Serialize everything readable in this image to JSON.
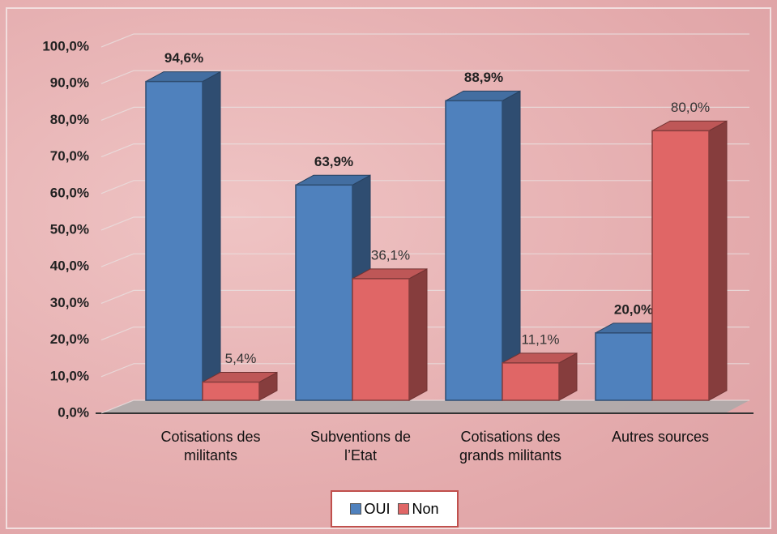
{
  "chart_data": {
    "type": "bar3d",
    "categories": [
      "Cotisations des militants",
      "Subventions de l’Etat",
      "Cotisations des grands militants",
      "Autres sources"
    ],
    "series": [
      {
        "name": "OUI",
        "color": "#4f81bd",
        "values": [
          94.6,
          63.9,
          88.9,
          20.0
        ],
        "value_labels": [
          "94,6%",
          "63,9%",
          "88,9%",
          "20,0%"
        ]
      },
      {
        "name": "Non",
        "color": "#e06666",
        "values": [
          5.4,
          36.1,
          11.1,
          80.0
        ],
        "value_labels": [
          "5,4%",
          "36,1%",
          "11,1%",
          "80,0%"
        ]
      }
    ],
    "ylim": [
      0,
      100
    ],
    "yticks": [
      {
        "value": 0,
        "label": "0,0%"
      },
      {
        "value": 10,
        "label": "10,0%"
      },
      {
        "value": 20,
        "label": "20,0%"
      },
      {
        "value": 30,
        "label": "30,0%"
      },
      {
        "value": 40,
        "label": "40,0%"
      },
      {
        "value": 50,
        "label": "50,0%"
      },
      {
        "value": 60,
        "label": "60,0%"
      },
      {
        "value": 70,
        "label": "70,0%"
      },
      {
        "value": 80,
        "label": "80,0%"
      },
      {
        "value": 90,
        "label": "90,0%"
      },
      {
        "value": 100,
        "label": "100,0%"
      }
    ],
    "grid": true,
    "legend": "bottom"
  }
}
